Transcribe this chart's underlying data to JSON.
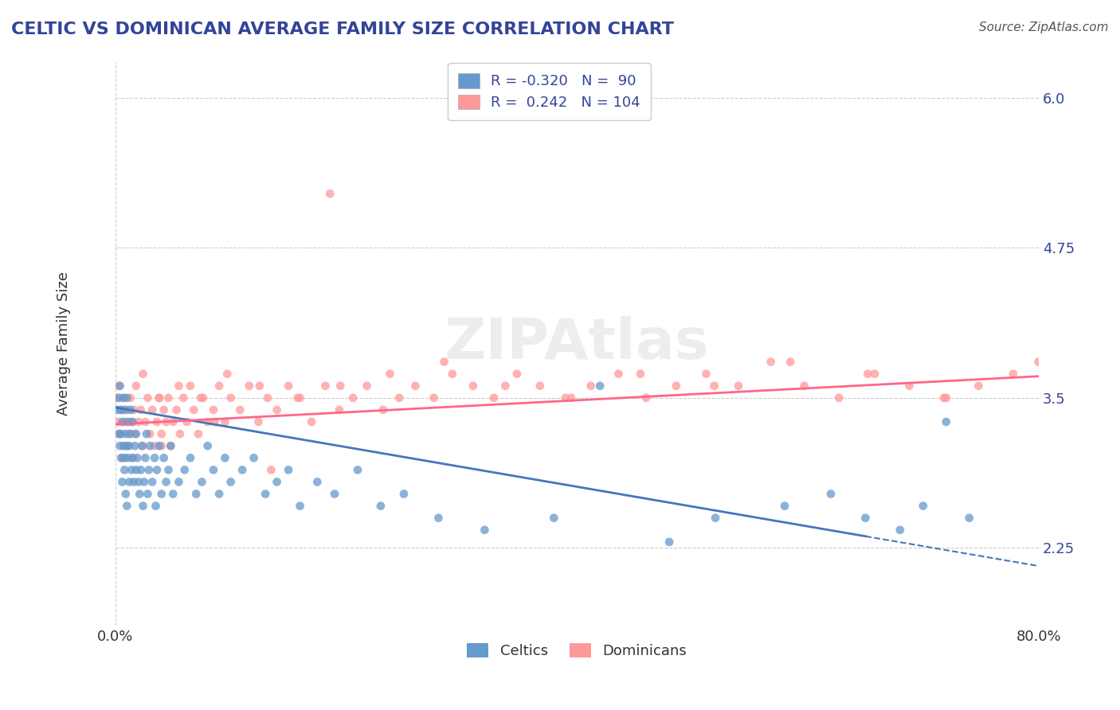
{
  "title": "CELTIC VS DOMINICAN AVERAGE FAMILY SIZE CORRELATION CHART",
  "source": "Source: ZipAtlas.com",
  "xlabel": "",
  "ylabel": "Average Family Size",
  "xlim": [
    0.0,
    0.8
  ],
  "ylim": [
    1.6,
    6.3
  ],
  "yticks": [
    2.25,
    3.5,
    4.75,
    6.0
  ],
  "xticks": [
    0.0,
    0.8
  ],
  "xticklabels": [
    "0.0%",
    "80.0%"
  ],
  "watermark": "ZIPAtlas",
  "legend_r1": "R = -0.320",
  "legend_n1": "N =  90",
  "legend_r2": "R =  0.242",
  "legend_n2": "N = 104",
  "celtics_label": "Celtics",
  "dominicans_label": "Dominicans",
  "blue_color": "#6699CC",
  "pink_color": "#FF9999",
  "blue_line_color": "#4477BB",
  "pink_line_color": "#FF6688",
  "title_color": "#334499",
  "legend_color": "#334499",
  "grid_color": "#CCCCCC",
  "background_color": "#FFFFFF",
  "watermark_color": "#DDDDDD",
  "celtics_x": [
    0.002,
    0.003,
    0.003,
    0.004,
    0.004,
    0.005,
    0.005,
    0.005,
    0.006,
    0.006,
    0.007,
    0.007,
    0.008,
    0.008,
    0.008,
    0.009,
    0.009,
    0.01,
    0.01,
    0.01,
    0.011,
    0.011,
    0.012,
    0.012,
    0.013,
    0.013,
    0.014,
    0.015,
    0.015,
    0.016,
    0.017,
    0.018,
    0.018,
    0.019,
    0.02,
    0.021,
    0.022,
    0.023,
    0.024,
    0.025,
    0.026,
    0.027,
    0.028,
    0.029,
    0.03,
    0.032,
    0.034,
    0.035,
    0.036,
    0.038,
    0.04,
    0.042,
    0.044,
    0.046,
    0.048,
    0.05,
    0.055,
    0.06,
    0.065,
    0.07,
    0.075,
    0.08,
    0.085,
    0.09,
    0.095,
    0.1,
    0.11,
    0.12,
    0.13,
    0.14,
    0.15,
    0.16,
    0.175,
    0.19,
    0.21,
    0.23,
    0.25,
    0.28,
    0.32,
    0.38,
    0.42,
    0.48,
    0.52,
    0.58,
    0.62,
    0.65,
    0.68,
    0.7,
    0.72,
    0.74
  ],
  "celtics_y": [
    3.4,
    3.2,
    3.5,
    3.1,
    3.6,
    3.0,
    3.4,
    3.2,
    2.8,
    3.3,
    3.1,
    3.5,
    2.9,
    3.4,
    3.0,
    3.2,
    2.7,
    3.1,
    3.5,
    2.6,
    3.3,
    3.0,
    3.1,
    2.8,
    3.2,
    3.4,
    2.9,
    3.0,
    3.3,
    2.8,
    3.1,
    2.9,
    3.2,
    3.0,
    2.8,
    2.7,
    2.9,
    3.1,
    2.6,
    2.8,
    3.0,
    3.2,
    2.7,
    2.9,
    3.1,
    2.8,
    3.0,
    2.6,
    2.9,
    3.1,
    2.7,
    3.0,
    2.8,
    2.9,
    3.1,
    2.7,
    2.8,
    2.9,
    3.0,
    2.7,
    2.8,
    3.1,
    2.9,
    2.7,
    3.0,
    2.8,
    2.9,
    3.0,
    2.7,
    2.8,
    2.9,
    2.6,
    2.8,
    2.7,
    2.9,
    2.6,
    2.7,
    2.5,
    2.4,
    2.5,
    3.6,
    2.3,
    2.5,
    2.6,
    2.7,
    2.5,
    2.4,
    2.6,
    3.3,
    2.5
  ],
  "dominicans_x": [
    0.001,
    0.002,
    0.003,
    0.004,
    0.005,
    0.006,
    0.007,
    0.008,
    0.009,
    0.01,
    0.012,
    0.013,
    0.014,
    0.015,
    0.016,
    0.017,
    0.018,
    0.02,
    0.022,
    0.024,
    0.026,
    0.028,
    0.03,
    0.032,
    0.034,
    0.036,
    0.038,
    0.04,
    0.042,
    0.044,
    0.046,
    0.048,
    0.05,
    0.053,
    0.056,
    0.059,
    0.062,
    0.065,
    0.068,
    0.072,
    0.076,
    0.08,
    0.085,
    0.09,
    0.095,
    0.1,
    0.108,
    0.116,
    0.124,
    0.132,
    0.14,
    0.15,
    0.16,
    0.17,
    0.182,
    0.194,
    0.206,
    0.218,
    0.232,
    0.246,
    0.26,
    0.276,
    0.292,
    0.31,
    0.328,
    0.348,
    0.368,
    0.39,
    0.412,
    0.436,
    0.46,
    0.486,
    0.512,
    0.54,
    0.568,
    0.597,
    0.627,
    0.658,
    0.688,
    0.718,
    0.748,
    0.778,
    0.8,
    0.024,
    0.038,
    0.055,
    0.074,
    0.097,
    0.125,
    0.158,
    0.195,
    0.238,
    0.285,
    0.338,
    0.395,
    0.455,
    0.519,
    0.585,
    0.652,
    0.72,
    0.04,
    0.086,
    0.135,
    0.186
  ],
  "dominicans_y": [
    3.5,
    3.3,
    3.6,
    3.2,
    3.4,
    3.0,
    3.5,
    3.3,
    3.1,
    3.4,
    3.2,
    3.5,
    3.3,
    3.0,
    3.4,
    3.2,
    3.6,
    3.3,
    3.4,
    3.1,
    3.3,
    3.5,
    3.2,
    3.4,
    3.1,
    3.3,
    3.5,
    3.2,
    3.4,
    3.3,
    3.5,
    3.1,
    3.3,
    3.4,
    3.2,
    3.5,
    3.3,
    3.6,
    3.4,
    3.2,
    3.5,
    3.3,
    3.4,
    3.6,
    3.3,
    3.5,
    3.4,
    3.6,
    3.3,
    3.5,
    3.4,
    3.6,
    3.5,
    3.3,
    3.6,
    3.4,
    3.5,
    3.6,
    3.4,
    3.5,
    3.6,
    3.5,
    3.7,
    3.6,
    3.5,
    3.7,
    3.6,
    3.5,
    3.6,
    3.7,
    3.5,
    3.6,
    3.7,
    3.6,
    3.8,
    3.6,
    3.5,
    3.7,
    3.6,
    3.5,
    3.6,
    3.7,
    3.8,
    3.7,
    3.5,
    3.6,
    3.5,
    3.7,
    3.6,
    3.5,
    3.6,
    3.7,
    3.8,
    3.6,
    3.5,
    3.7,
    3.6,
    3.8,
    3.7,
    3.5,
    3.1,
    3.3,
    2.9,
    5.2
  ],
  "celtics_trend_x": [
    0.0,
    0.8
  ],
  "celtics_trend_y": [
    3.42,
    2.1
  ],
  "dominicans_trend_x": [
    0.0,
    0.8
  ],
  "dominicans_trend_y": [
    3.28,
    3.68
  ]
}
